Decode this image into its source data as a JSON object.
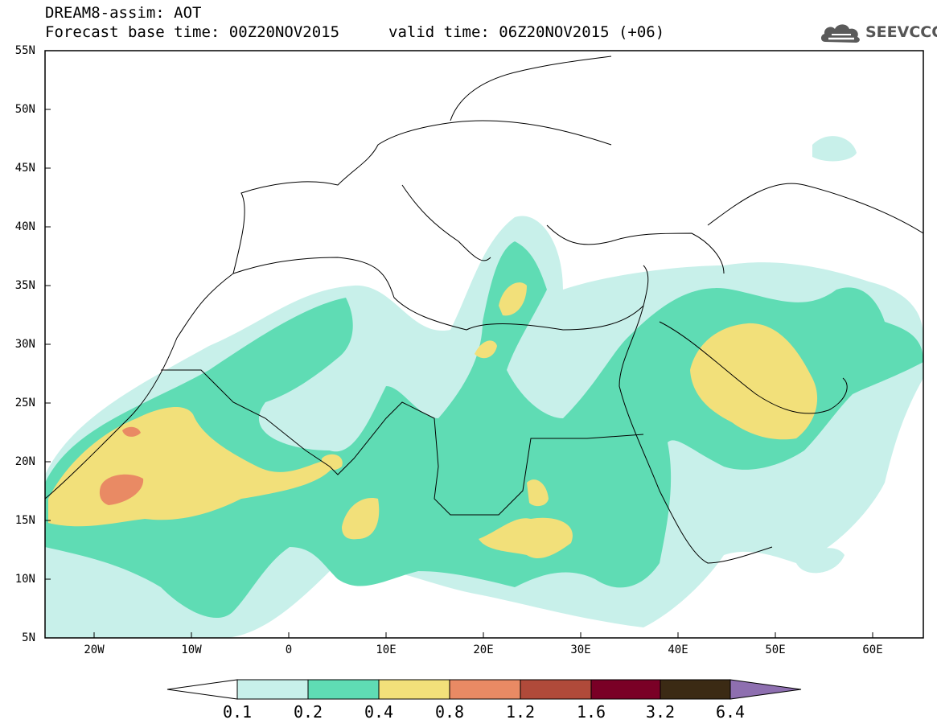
{
  "header": {
    "title": "DREAM8-assim: AOT",
    "base_time": "Forecast base time: 00Z20NOV2015",
    "valid_time": "valid time: 06Z20NOV2015 (+06)",
    "logo": "SEEVCCC"
  },
  "map": {
    "variable": "AOT",
    "projection": "lat-lon",
    "lon_range": [
      -25,
      65
    ],
    "lat_range": [
      5,
      55
    ],
    "lat_labels": [
      "55N",
      "50N",
      "45N",
      "40N",
      "35N",
      "30N",
      "25N",
      "20N",
      "15N",
      "10N",
      "5N"
    ],
    "lon_labels": [
      "20W",
      "10W",
      "0",
      "10E",
      "20E",
      "30E",
      "40E",
      "50E",
      "60E"
    ]
  },
  "colorbar": {
    "levels": [
      "0.1",
      "0.2",
      "0.4",
      "0.8",
      "1.2",
      "1.6",
      "3.2",
      "6.4"
    ],
    "colors": [
      "#c8f0ea",
      "#5fdcb4",
      "#f2e07a",
      "#e98a64",
      "#b04a3a",
      "#7a0026",
      "#3b2a14",
      "#8e6fb0"
    ]
  }
}
